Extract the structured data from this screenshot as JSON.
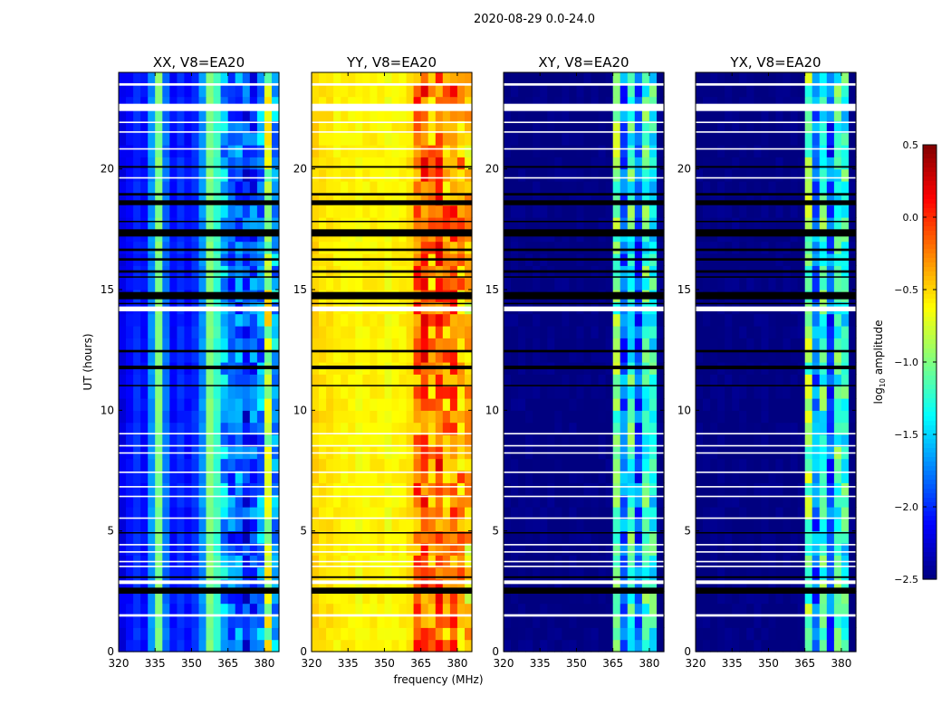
{
  "chart_data": {
    "type": "heatmap",
    "title": "2020-08-29 0.0-24.0",
    "xlabel": "frequency (MHz)",
    "ylabel": "UT (hours)",
    "xlim": [
      320,
      386
    ],
    "ylim": [
      0,
      24
    ],
    "xticks": [
      "320",
      "335",
      "350",
      "365",
      "380"
    ],
    "yticks": [
      "0",
      "5",
      "10",
      "15",
      "20"
    ],
    "colorbar": {
      "label": "log10 amplitude",
      "range": [
        -2.5,
        0.5
      ],
      "ticks": [
        "0.5",
        "0.0",
        "−0.5",
        "−1.0",
        "−1.5",
        "−2.0",
        "−2.5"
      ],
      "colormap": "jet"
    },
    "profile_frequencies_mhz": [
      320,
      323,
      326,
      329,
      332,
      335,
      338,
      341,
      344,
      347,
      350,
      353,
      356,
      359,
      362,
      365,
      368,
      371,
      374,
      377,
      380,
      383
    ],
    "panels": [
      {
        "title": "XX, V8=EA20",
        "profile": [
          -2.2,
          -2.1,
          -2.0,
          -2.1,
          -1.7,
          -1.0,
          -1.8,
          -2.1,
          -2.0,
          -2.1,
          -2.0,
          -1.7,
          -1.0,
          -1.2,
          -1.6,
          -1.9,
          -1.8,
          -2.0,
          -1.9,
          -1.7,
          -0.8,
          -1.6
        ]
      },
      {
        "title": "YY, V8=EA20",
        "profile": [
          -0.5,
          -0.55,
          -0.55,
          -0.6,
          -0.6,
          -0.6,
          -0.65,
          -0.6,
          -0.6,
          -0.6,
          -0.65,
          -0.6,
          -0.6,
          -0.55,
          -0.2,
          -0.1,
          -0.3,
          -0.1,
          -0.3,
          -0.15,
          -0.35,
          -0.5
        ]
      },
      {
        "title": "XY, V8=EA20",
        "profile": [
          -2.5,
          -2.5,
          -2.5,
          -2.5,
          -2.5,
          -2.5,
          -2.5,
          -2.5,
          -2.5,
          -2.5,
          -2.5,
          -2.5,
          -2.5,
          -2.5,
          -2.5,
          -1.0,
          -1.8,
          -1.2,
          -1.9,
          -1.2,
          -1.3,
          -2.5
        ]
      },
      {
        "title": "YX, V8=EA20",
        "profile": [
          -2.5,
          -2.5,
          -2.5,
          -2.5,
          -2.5,
          -2.5,
          -2.5,
          -2.5,
          -2.5,
          -2.5,
          -2.5,
          -2.5,
          -2.5,
          -2.5,
          -2.5,
          -1.0,
          -1.8,
          -1.2,
          -1.9,
          -1.2,
          -1.3,
          -2.5
        ]
      }
    ],
    "flagged_hours_white": [
      [
        22.4,
        22.7
      ],
      [
        23.45,
        23.55
      ],
      [
        1.45,
        1.55
      ],
      [
        2.8,
        2.95
      ],
      [
        14.1,
        14.3
      ],
      [
        3.5,
        3.56
      ],
      [
        3.7,
        3.76
      ],
      [
        4.1,
        4.16
      ],
      [
        4.4,
        4.46
      ],
      [
        5.5,
        5.56
      ],
      [
        6.4,
        6.46
      ],
      [
        6.8,
        6.86
      ],
      [
        7.4,
        7.46
      ],
      [
        8.2,
        8.26
      ],
      [
        8.5,
        8.56
      ],
      [
        9.0,
        9.06
      ],
      [
        19.6,
        19.66
      ],
      [
        20.8,
        20.86
      ],
      [
        21.5,
        21.56
      ],
      [
        21.9,
        21.96
      ]
    ],
    "flagged_hours_black": [
      [
        20.05,
        20.12
      ],
      [
        18.5,
        18.7
      ],
      [
        18.9,
        19.0
      ],
      [
        17.2,
        17.5
      ],
      [
        16.6,
        16.7
      ],
      [
        16.2,
        16.3
      ],
      [
        15.7,
        15.8
      ],
      [
        14.6,
        14.9
      ],
      [
        14.4,
        14.45
      ],
      [
        12.4,
        12.5
      ],
      [
        11.7,
        11.85
      ],
      [
        11.0,
        11.05
      ],
      [
        2.4,
        2.65
      ],
      [
        3.05,
        3.12
      ],
      [
        4.9,
        4.95
      ],
      [
        15.5,
        15.55
      ],
      [
        17.8,
        17.85
      ]
    ]
  }
}
